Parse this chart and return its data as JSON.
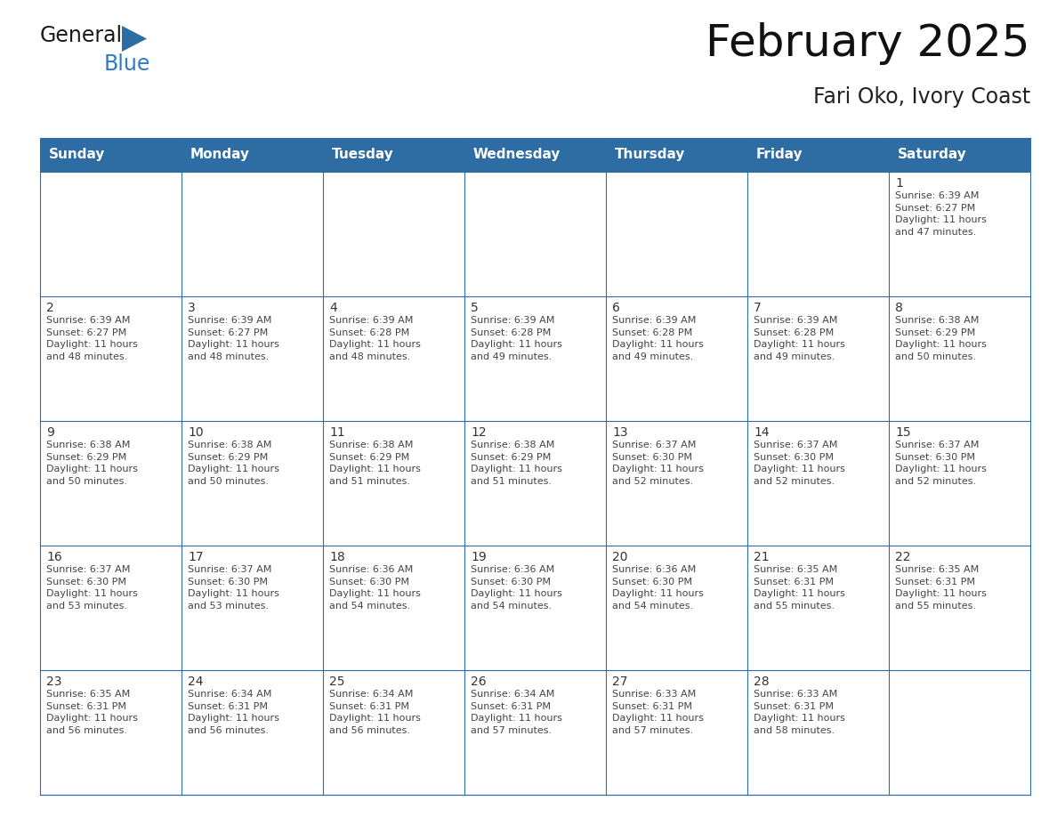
{
  "title": "February 2025",
  "subtitle": "Fari Oko, Ivory Coast",
  "header_color": "#2E6DA4",
  "header_text_color": "#FFFFFF",
  "line_color": "#2E6DA4",
  "bg_color": "#FFFFFF",
  "cell_bg_even": "#FFFFFF",
  "cell_bg_odd": "#F2F2F2",
  "day_headers": [
    "Sunday",
    "Monday",
    "Tuesday",
    "Wednesday",
    "Thursday",
    "Friday",
    "Saturday"
  ],
  "calendar_data": [
    [
      {
        "day": "",
        "info": ""
      },
      {
        "day": "",
        "info": ""
      },
      {
        "day": "",
        "info": ""
      },
      {
        "day": "",
        "info": ""
      },
      {
        "day": "",
        "info": ""
      },
      {
        "day": "",
        "info": ""
      },
      {
        "day": "1",
        "info": "Sunrise: 6:39 AM\nSunset: 6:27 PM\nDaylight: 11 hours\nand 47 minutes."
      }
    ],
    [
      {
        "day": "2",
        "info": "Sunrise: 6:39 AM\nSunset: 6:27 PM\nDaylight: 11 hours\nand 48 minutes."
      },
      {
        "day": "3",
        "info": "Sunrise: 6:39 AM\nSunset: 6:27 PM\nDaylight: 11 hours\nand 48 minutes."
      },
      {
        "day": "4",
        "info": "Sunrise: 6:39 AM\nSunset: 6:28 PM\nDaylight: 11 hours\nand 48 minutes."
      },
      {
        "day": "5",
        "info": "Sunrise: 6:39 AM\nSunset: 6:28 PM\nDaylight: 11 hours\nand 49 minutes."
      },
      {
        "day": "6",
        "info": "Sunrise: 6:39 AM\nSunset: 6:28 PM\nDaylight: 11 hours\nand 49 minutes."
      },
      {
        "day": "7",
        "info": "Sunrise: 6:39 AM\nSunset: 6:28 PM\nDaylight: 11 hours\nand 49 minutes."
      },
      {
        "day": "8",
        "info": "Sunrise: 6:38 AM\nSunset: 6:29 PM\nDaylight: 11 hours\nand 50 minutes."
      }
    ],
    [
      {
        "day": "9",
        "info": "Sunrise: 6:38 AM\nSunset: 6:29 PM\nDaylight: 11 hours\nand 50 minutes."
      },
      {
        "day": "10",
        "info": "Sunrise: 6:38 AM\nSunset: 6:29 PM\nDaylight: 11 hours\nand 50 minutes."
      },
      {
        "day": "11",
        "info": "Sunrise: 6:38 AM\nSunset: 6:29 PM\nDaylight: 11 hours\nand 51 minutes."
      },
      {
        "day": "12",
        "info": "Sunrise: 6:38 AM\nSunset: 6:29 PM\nDaylight: 11 hours\nand 51 minutes."
      },
      {
        "day": "13",
        "info": "Sunrise: 6:37 AM\nSunset: 6:30 PM\nDaylight: 11 hours\nand 52 minutes."
      },
      {
        "day": "14",
        "info": "Sunrise: 6:37 AM\nSunset: 6:30 PM\nDaylight: 11 hours\nand 52 minutes."
      },
      {
        "day": "15",
        "info": "Sunrise: 6:37 AM\nSunset: 6:30 PM\nDaylight: 11 hours\nand 52 minutes."
      }
    ],
    [
      {
        "day": "16",
        "info": "Sunrise: 6:37 AM\nSunset: 6:30 PM\nDaylight: 11 hours\nand 53 minutes."
      },
      {
        "day": "17",
        "info": "Sunrise: 6:37 AM\nSunset: 6:30 PM\nDaylight: 11 hours\nand 53 minutes."
      },
      {
        "day": "18",
        "info": "Sunrise: 6:36 AM\nSunset: 6:30 PM\nDaylight: 11 hours\nand 54 minutes."
      },
      {
        "day": "19",
        "info": "Sunrise: 6:36 AM\nSunset: 6:30 PM\nDaylight: 11 hours\nand 54 minutes."
      },
      {
        "day": "20",
        "info": "Sunrise: 6:36 AM\nSunset: 6:30 PM\nDaylight: 11 hours\nand 54 minutes."
      },
      {
        "day": "21",
        "info": "Sunrise: 6:35 AM\nSunset: 6:31 PM\nDaylight: 11 hours\nand 55 minutes."
      },
      {
        "day": "22",
        "info": "Sunrise: 6:35 AM\nSunset: 6:31 PM\nDaylight: 11 hours\nand 55 minutes."
      }
    ],
    [
      {
        "day": "23",
        "info": "Sunrise: 6:35 AM\nSunset: 6:31 PM\nDaylight: 11 hours\nand 56 minutes."
      },
      {
        "day": "24",
        "info": "Sunrise: 6:34 AM\nSunset: 6:31 PM\nDaylight: 11 hours\nand 56 minutes."
      },
      {
        "day": "25",
        "info": "Sunrise: 6:34 AM\nSunset: 6:31 PM\nDaylight: 11 hours\nand 56 minutes."
      },
      {
        "day": "26",
        "info": "Sunrise: 6:34 AM\nSunset: 6:31 PM\nDaylight: 11 hours\nand 57 minutes."
      },
      {
        "day": "27",
        "info": "Sunrise: 6:33 AM\nSunset: 6:31 PM\nDaylight: 11 hours\nand 57 minutes."
      },
      {
        "day": "28",
        "info": "Sunrise: 6:33 AM\nSunset: 6:31 PM\nDaylight: 11 hours\nand 58 minutes."
      },
      {
        "day": "",
        "info": ""
      }
    ]
  ],
  "title_fontsize": 36,
  "subtitle_fontsize": 17,
  "header_fontsize": 11,
  "day_num_fontsize": 10,
  "cell_text_fontsize": 8,
  "logo_fontsize": 17,
  "logo_blue_fontsize": 17
}
